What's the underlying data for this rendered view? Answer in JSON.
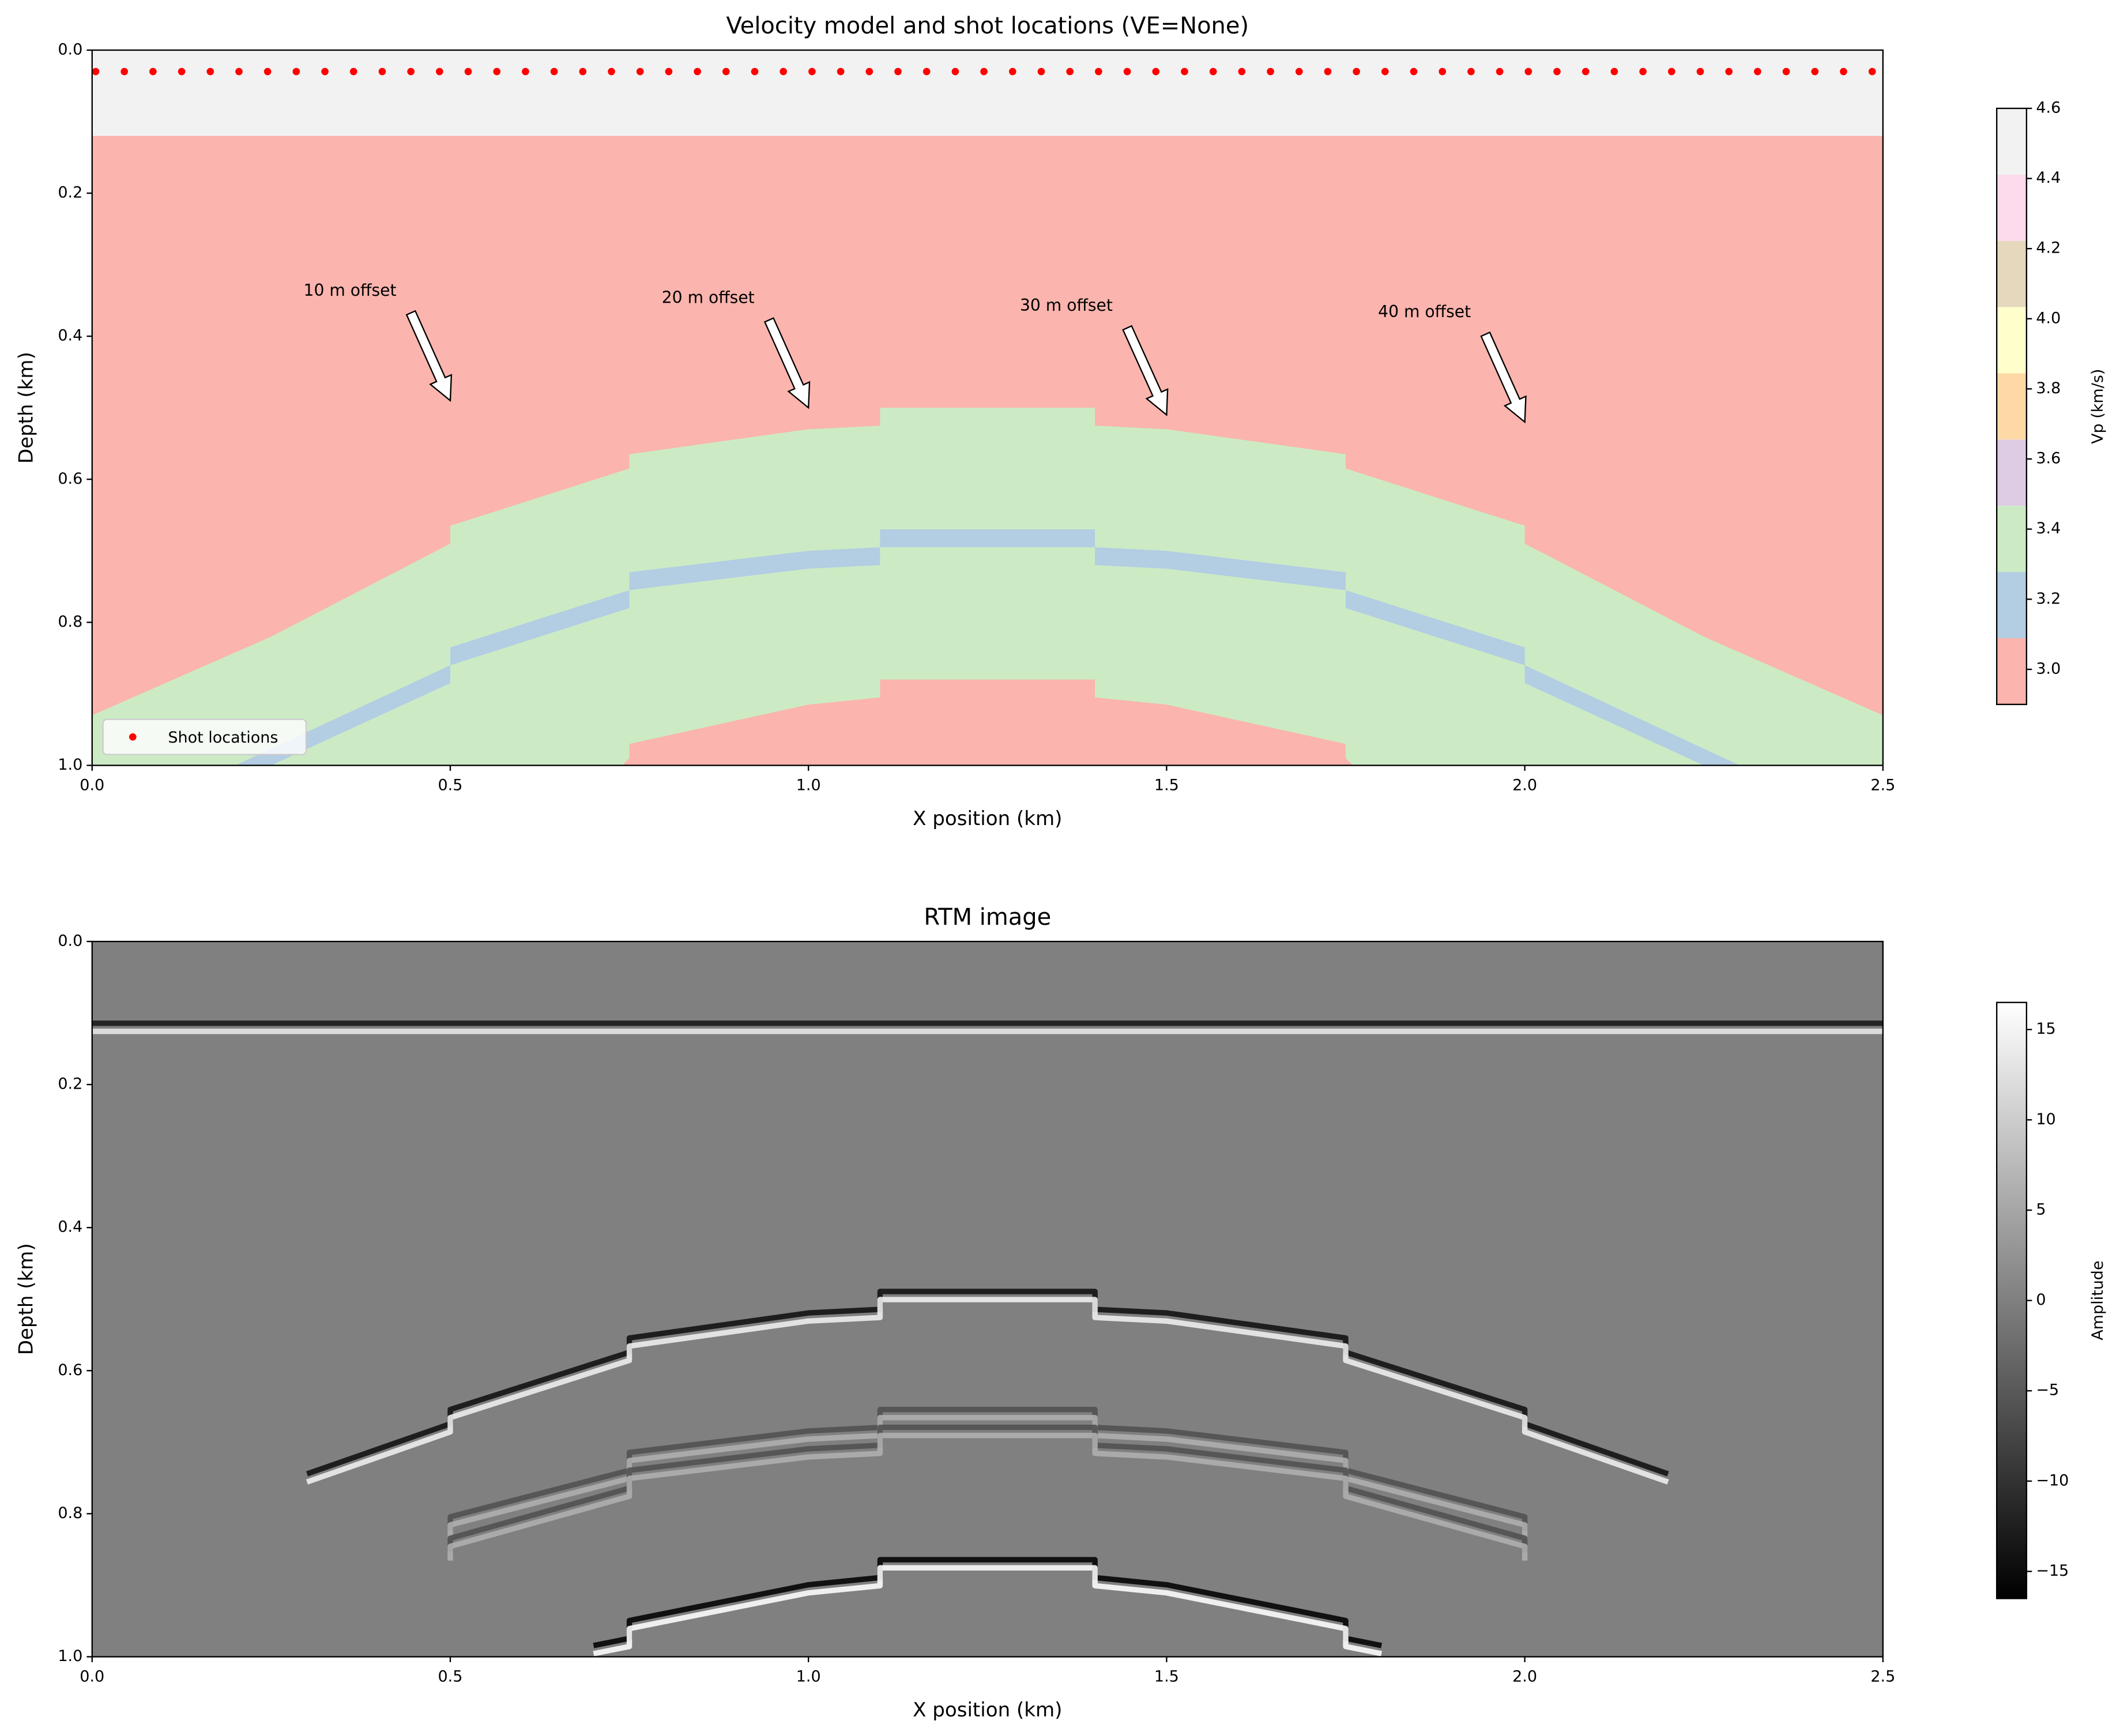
{
  "chart_data": [
    {
      "type": "velocity",
      "title": "Velocity model and shot locations (VE=None)",
      "xlabel": "X position (km)",
      "ylabel": "Depth (km)",
      "xlim": [
        0,
        2.5
      ],
      "ylim": [
        0,
        1
      ],
      "y_inverted": true,
      "xticks": [
        {
          "value": 0,
          "label": "0.0"
        },
        0.5,
        {
          "value": 1,
          "label": "1.0"
        },
        1.5,
        {
          "value": 2,
          "label": "2.0"
        },
        2.5
      ],
      "yticks": [
        {
          "value": 0,
          "label": "0.0"
        },
        0.2,
        0.4,
        0.6,
        0.8,
        {
          "value": 1,
          "label": "1.0"
        }
      ],
      "layers": [
        {
          "value": 4.5,
          "x": [
            0,
            2.5
          ],
          "depth": [
            0,
            0
          ]
        },
        {
          "value": 3.0,
          "x": [
            0,
            2.5
          ],
          "depth": [
            0.12,
            0.12
          ]
        },
        {
          "value": 3.4,
          "x": [
            0,
            0.25,
            0.5,
            0.5,
            0.75,
            0.75,
            1.0,
            1.1,
            1.1,
            1.4,
            1.4,
            1.5,
            1.75,
            1.75,
            2.0,
            2.0,
            2.25,
            2.5
          ],
          "depth": [
            0.93,
            0.82,
            0.69,
            0.665,
            0.585,
            0.565,
            0.53,
            0.525,
            0.5,
            0.5,
            0.525,
            0.53,
            0.565,
            0.585,
            0.665,
            0.69,
            0.82,
            0.93
          ]
        },
        {
          "value": 3.2,
          "x": [
            0.2,
            0.5,
            0.5,
            0.75,
            0.75,
            1.0,
            1.1,
            1.1,
            1.4,
            1.4,
            1.5,
            1.75,
            1.75,
            2.0,
            2.0,
            2.3
          ],
          "depth": [
            1.0,
            0.86,
            0.835,
            0.755,
            0.73,
            0.7,
            0.695,
            0.67,
            0.67,
            0.695,
            0.7,
            0.73,
            0.755,
            0.835,
            0.86,
            1.0
          ]
        },
        {
          "value": 3.4,
          "x": [
            0.25,
            0.5,
            0.5,
            0.75,
            0.75,
            1.0,
            1.1,
            1.1,
            1.4,
            1.4,
            1.5,
            1.75,
            1.75,
            2.0,
            2.0,
            2.25
          ],
          "depth": [
            1.0,
            0.885,
            0.86,
            0.78,
            0.755,
            0.725,
            0.72,
            0.695,
            0.695,
            0.72,
            0.725,
            0.755,
            0.78,
            0.86,
            0.885,
            1.0
          ]
        },
        {
          "value": 3.0,
          "x": [
            0.74,
            0.75,
            0.75,
            1.0,
            1.1,
            1.1,
            1.4,
            1.4,
            1.5,
            1.75,
            1.75,
            1.76
          ],
          "depth": [
            1.0,
            0.99,
            0.97,
            0.915,
            0.905,
            0.88,
            0.88,
            0.905,
            0.915,
            0.97,
            0.99,
            1.0
          ]
        }
      ],
      "series": [
        {
          "name": "Shot locations",
          "color": "#ff0000",
          "x": [
            0.005,
            0.045,
            0.085,
            0.125,
            0.165,
            0.205,
            0.245,
            0.285,
            0.325,
            0.365,
            0.405,
            0.445,
            0.485,
            0.525,
            0.565,
            0.605,
            0.645,
            0.685,
            0.725,
            0.765,
            0.805,
            0.845,
            0.885,
            0.925,
            0.965,
            1.005,
            1.045,
            1.085,
            1.125,
            1.165,
            1.205,
            1.245,
            1.285,
            1.325,
            1.365,
            1.405,
            1.445,
            1.485,
            1.525,
            1.565,
            1.605,
            1.645,
            1.685,
            1.725,
            1.765,
            1.805,
            1.845,
            1.885,
            1.925,
            1.965,
            2.005,
            2.045,
            2.085,
            2.125,
            2.165,
            2.205,
            2.245,
            2.285,
            2.325,
            2.365,
            2.405,
            2.445,
            2.485
          ],
          "values": [
            0.03,
            0.03,
            0.03,
            0.03,
            0.03,
            0.03,
            0.03,
            0.03,
            0.03,
            0.03,
            0.03,
            0.03,
            0.03,
            0.03,
            0.03,
            0.03,
            0.03,
            0.03,
            0.03,
            0.03,
            0.03,
            0.03,
            0.03,
            0.03,
            0.03,
            0.03,
            0.03,
            0.03,
            0.03,
            0.03,
            0.03,
            0.03,
            0.03,
            0.03,
            0.03,
            0.03,
            0.03,
            0.03,
            0.03,
            0.03,
            0.03,
            0.03,
            0.03,
            0.03,
            0.03,
            0.03,
            0.03,
            0.03,
            0.03,
            0.03,
            0.03,
            0.03,
            0.03,
            0.03,
            0.03,
            0.03,
            0.03,
            0.03,
            0.03,
            0.03,
            0.03,
            0.03,
            0.03
          ]
        }
      ],
      "legend": "lower left",
      "annotations": [
        {
          "text": "10 m offset",
          "xytext": [
            0.36,
            0.337
          ],
          "xy": [
            0.5,
            0.49
          ]
        },
        {
          "text": "20 m offset",
          "xytext": [
            0.86,
            0.347
          ],
          "xy": [
            1.0,
            0.5
          ]
        },
        {
          "text": "30 m offset",
          "xytext": [
            1.36,
            0.358
          ],
          "xy": [
            1.5,
            0.51
          ]
        },
        {
          "text": "40 m offset",
          "xytext": [
            1.86,
            0.367
          ],
          "xy": [
            2.0,
            0.52
          ]
        }
      ],
      "colorbar": {
        "label": "Vp (km/s)",
        "lim": [
          2.9,
          4.6
        ],
        "ticks": [
          {
            "value": 3.0,
            "label": "3.0"
          },
          3.2,
          3.4,
          3.6,
          3.8,
          {
            "value": 4.0,
            "label": "4.0"
          },
          4.2,
          4.4,
          4.6
        ],
        "colors": [
          "#fbb4ae",
          "#b3cde3",
          "#ccebc5",
          "#decbe4",
          "#fed9a6",
          "#ffffcc",
          "#e5d8bd",
          "#fddaec",
          "#f2f2f2"
        ]
      }
    },
    {
      "type": "rtm",
      "title": "RTM image",
      "xlabel": "X position (km)",
      "ylabel": "Depth (km)",
      "xlim": [
        0,
        2.5
      ],
      "ylim": [
        0,
        1
      ],
      "y_inverted": true,
      "xticks": [
        {
          "value": 0,
          "label": "0.0"
        },
        0.5,
        {
          "value": 1,
          "label": "1.0"
        },
        1.5,
        {
          "value": 2,
          "label": "2.0"
        },
        2.5
      ],
      "yticks": [
        {
          "value": 0,
          "label": "0.0"
        },
        0.2,
        0.4,
        0.6,
        0.8,
        {
          "value": 1,
          "label": "1.0"
        }
      ],
      "reflectors": [
        {
          "amplitude": 13,
          "x": [
            0,
            2.5
          ],
          "depth": [
            0.12,
            0.12
          ]
        },
        {
          "amplitude": 14,
          "x": [
            0.3,
            0.5,
            0.5,
            0.75,
            0.75,
            1.0,
            1.1,
            1.1,
            1.4,
            1.4,
            1.5,
            1.75,
            1.75,
            2.0,
            2.0,
            2.2
          ],
          "depth": [
            0.75,
            0.68,
            0.66,
            0.58,
            0.56,
            0.525,
            0.52,
            0.495,
            0.495,
            0.52,
            0.525,
            0.56,
            0.58,
            0.66,
            0.68,
            0.75
          ]
        },
        {
          "amplitude": 6,
          "x": [
            0.5,
            0.5,
            0.75,
            0.75,
            1.0,
            1.1,
            1.1,
            1.4,
            1.4,
            1.5,
            1.75,
            1.75,
            2.0,
            2.0
          ],
          "depth": [
            0.83,
            0.81,
            0.745,
            0.72,
            0.69,
            0.685,
            0.66,
            0.66,
            0.685,
            0.69,
            0.72,
            0.745,
            0.81,
            0.83
          ]
        },
        {
          "amplitude": 6,
          "x": [
            0.5,
            0.5,
            0.75,
            0.75,
            1.0,
            1.1,
            1.1,
            1.4,
            1.4,
            1.5,
            1.75,
            1.75,
            2.0,
            2.0
          ],
          "depth": [
            0.86,
            0.84,
            0.77,
            0.745,
            0.715,
            0.71,
            0.685,
            0.685,
            0.71,
            0.715,
            0.745,
            0.77,
            0.84,
            0.86
          ]
        },
        {
          "amplitude": 16,
          "x": [
            0.7,
            0.75,
            0.75,
            1.0,
            1.1,
            1.1,
            1.4,
            1.4,
            1.5,
            1.75,
            1.75,
            1.8
          ],
          "depth": [
            0.99,
            0.98,
            0.955,
            0.905,
            0.895,
            0.87,
            0.87,
            0.895,
            0.905,
            0.955,
            0.98,
            0.99
          ]
        }
      ],
      "colorbar": {
        "label": "Amplitude",
        "lim": [
          -16.5,
          16.5
        ],
        "colormap": "gray",
        "ticks": [
          {
            "value": -15,
            "label": "−15"
          },
          {
            "value": -10,
            "label": "−10"
          },
          {
            "value": -5,
            "label": "−5"
          },
          0,
          5,
          10,
          15
        ]
      }
    }
  ]
}
